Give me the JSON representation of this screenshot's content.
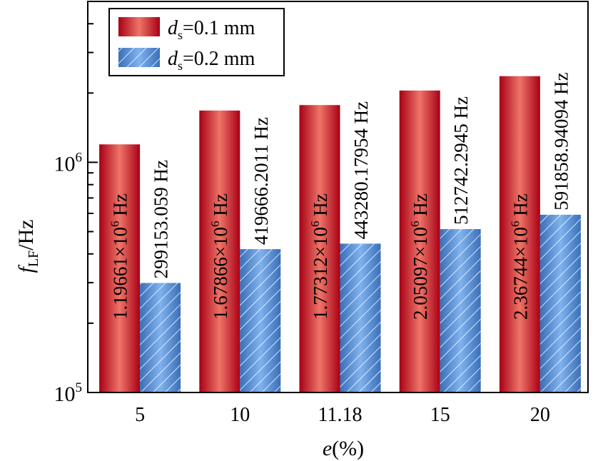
{
  "chart_data": {
    "type": "bar",
    "categories": [
      "5",
      "10",
      "11.18",
      "15",
      "20"
    ],
    "xlabel": "e(%)",
    "xlabel_parts": {
      "italic": "e",
      "rest": "(%)"
    },
    "ylabel": "f_LF/Hz",
    "ylabel_parts": {
      "main": "f",
      "sub": "LF",
      "rest": "/Hz"
    },
    "yscale": "log",
    "ylim": [
      100000,
      5000000
    ],
    "yticks_major": [
      {
        "value": 100000,
        "base": "10",
        "exp": "5"
      },
      {
        "value": 1000000,
        "base": "10",
        "exp": "6"
      }
    ],
    "yticks_minor": [
      200000,
      300000,
      400000,
      500000,
      600000,
      700000,
      800000,
      900000,
      2000000,
      3000000,
      4000000
    ],
    "legend": {
      "placement": "top-left"
    },
    "series": [
      {
        "name": "ds=0.1 mm",
        "name_parts": {
          "main": "d",
          "sub": "s",
          "rest": "=0.1 mm"
        },
        "color_dark": "#a80015",
        "color_light": "#ee7468",
        "pattern": "gradient",
        "values": [
          1196610,
          1678660,
          1773120,
          2050970,
          2367440
        ],
        "labels": [
          {
            "mant": "1.19661×10",
            "exp": "6",
            "unit": " Hz"
          },
          {
            "mant": "1.67866×10",
            "exp": "6",
            "unit": " Hz"
          },
          {
            "mant": "1.77312×10",
            "exp": "6",
            "unit": " Hz"
          },
          {
            "mant": "2.05097×10",
            "exp": "6",
            "unit": " Hz"
          },
          {
            "mant": "2.36744×10",
            "exp": "6",
            "unit": " Hz"
          }
        ]
      },
      {
        "name": "ds=0.2 mm",
        "name_parts": {
          "main": "d",
          "sub": "s",
          "rest": "=0.2 mm"
        },
        "color_dark": "#3a6fb8",
        "color_light": "#7fb0ec",
        "pattern": "hatch",
        "values": [
          299153.059,
          419666.2011,
          443280.17954,
          512742.2945,
          591858.94094
        ],
        "labels": [
          {
            "text": "299153.059 Hz"
          },
          {
            "text": "419666.2011 Hz"
          },
          {
            "text": "443280.17954 Hz"
          },
          {
            "text": "512742.2945 Hz"
          },
          {
            "text": "591858.94094 Hz"
          }
        ]
      }
    ]
  }
}
